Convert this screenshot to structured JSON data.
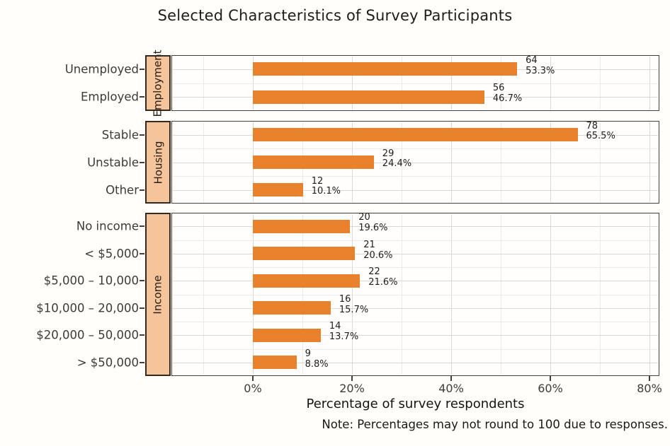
{
  "chart_data": {
    "type": "bar",
    "orientation": "horizontal",
    "title": "Selected Characteristics of Survey Participants",
    "xlabel": "Percentage of survey respondents",
    "note": "Note: Percentages may not round to 100 due to responses.",
    "x_unit": "%",
    "xlim": [
      -16.4,
      82
    ],
    "grid": "on",
    "x_ticks": [
      {
        "value": 0,
        "label": "0%"
      },
      {
        "value": 20,
        "label": "20%"
      },
      {
        "value": 40,
        "label": "40%"
      },
      {
        "value": 60,
        "label": "60%"
      },
      {
        "value": 80,
        "label": "80%"
      }
    ],
    "x_minor_ticks": [
      -10,
      10,
      30,
      50,
      70
    ],
    "facets": [
      {
        "name": "Employment",
        "rows": [
          {
            "label": "Unemployed",
            "count": 64,
            "pct": 53.3,
            "pct_label": "53.3%"
          },
          {
            "label": "Employed",
            "count": 56,
            "pct": 46.7,
            "pct_label": "46.7%"
          }
        ]
      },
      {
        "name": "Housing",
        "rows": [
          {
            "label": "Stable",
            "count": 78,
            "pct": 65.5,
            "pct_label": "65.5%"
          },
          {
            "label": "Unstable",
            "count": 29,
            "pct": 24.4,
            "pct_label": "24.4%"
          },
          {
            "label": "Other",
            "count": 12,
            "pct": 10.1,
            "pct_label": "10.1%"
          }
        ]
      },
      {
        "name": "Income",
        "rows": [
          {
            "label": "No income",
            "count": 20,
            "pct": 19.6,
            "pct_label": "19.6%"
          },
          {
            "label": "< $5,000",
            "count": 21,
            "pct": 20.6,
            "pct_label": "20.6%"
          },
          {
            "label": "$5,000 – 10,000",
            "count": 22,
            "pct": 21.6,
            "pct_label": "21.6%"
          },
          {
            "label": "$10,000 – 20,000",
            "count": 16,
            "pct": 15.7,
            "pct_label": "15.7%"
          },
          {
            "label": "$20,000 – 50,000",
            "count": 14,
            "pct": 13.7,
            "pct_label": "13.7%"
          },
          {
            "label": "> $50,000",
            "count": 9,
            "pct": 8.8,
            "pct_label": "8.8%"
          }
        ]
      }
    ],
    "colors": {
      "bar": "#E8812C",
      "strip_fill": "#F5C49A",
      "strip_border": "#33291E",
      "panel_border": "#45403B",
      "grid_major": "#DBD8D4",
      "grid_minor": "#ECE9E6",
      "text": "#1F1D1B",
      "axis_text": "#3D3B39",
      "background": "#FFFEFA"
    }
  }
}
